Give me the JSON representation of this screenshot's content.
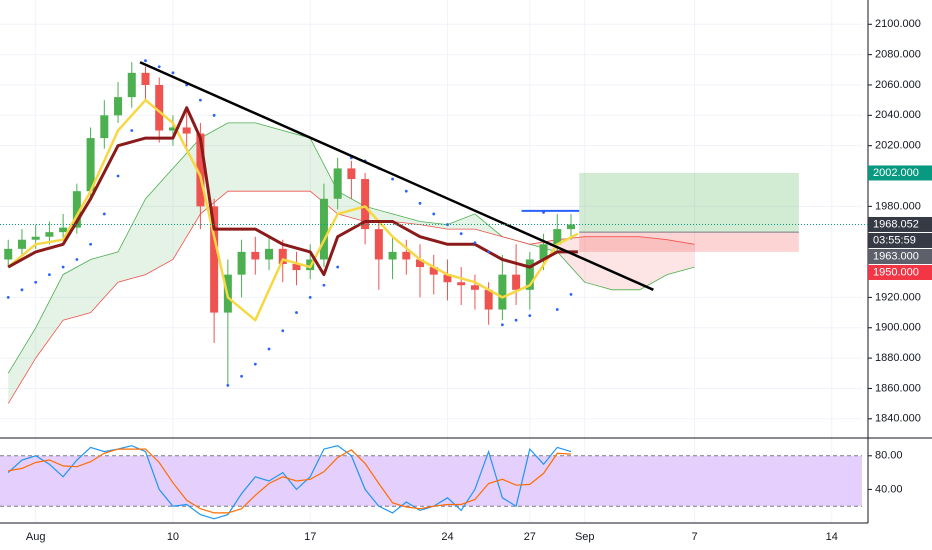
{
  "chart_data": [
    {
      "type": "candlestick",
      "xlim": [
        -1.3,
        30.1
      ],
      "xticks": [
        {
          "value": 0,
          "label": "Aug"
        },
        {
          "value": 5,
          "label": "10"
        },
        {
          "value": 10,
          "label": "17"
        },
        {
          "value": 15,
          "label": "24"
        },
        {
          "value": 18,
          "label": "27"
        },
        {
          "value": 20,
          "label": "Sep"
        },
        {
          "value": 24,
          "label": "7"
        },
        {
          "value": 29,
          "label": "14"
        }
      ],
      "ylim": [
        1828,
        2116
      ],
      "yticks": [
        {
          "value": 2100,
          "label": "2100.000"
        },
        {
          "value": 2080,
          "label": "2080.000"
        },
        {
          "value": 2060,
          "label": "2060.000"
        },
        {
          "value": 2040,
          "label": "2040.000"
        },
        {
          "value": 2020,
          "label": "2020.000"
        },
        {
          "value": 1980,
          "label": "1980.000"
        },
        {
          "value": 1920,
          "label": "1920.000"
        },
        {
          "value": 1900,
          "label": "1900.000"
        },
        {
          "value": 1880,
          "label": "1880.000"
        },
        {
          "value": 1860,
          "label": "1860.000"
        },
        {
          "value": 1840,
          "label": "1840.000"
        }
      ],
      "grid": true,
      "up_color": "#4caf50",
      "down_color": "#ef5350",
      "x": [
        -1,
        -0.5,
        0,
        0.5,
        1,
        1.5,
        2,
        2.5,
        3,
        3.5,
        4,
        4.5,
        5,
        5.5,
        6,
        6.5,
        7,
        7.5,
        8,
        8.5,
        9,
        9.5,
        10,
        10.5,
        11,
        11.5,
        12,
        12.5,
        13,
        13.5,
        14,
        14.5,
        15,
        15.5,
        16,
        16.5,
        17,
        17.5,
        18,
        18.5,
        19,
        19.5
      ],
      "open": [
        1945,
        1952,
        1958,
        1960,
        1963,
        1966,
        1990,
        2025,
        2040,
        2052,
        2068,
        2060,
        2030,
        2032,
        2028,
        1980,
        1910,
        1935,
        1950,
        1945,
        1952,
        1942,
        1938,
        1945,
        1985,
        2005,
        1998,
        1965,
        1945,
        1950,
        1945,
        1940,
        1935,
        1930,
        1928,
        1925,
        1912,
        1935,
        1925,
        1945,
        1955,
        1965
      ],
      "high": [
        1958,
        1965,
        1968,
        1970,
        1975,
        1995,
        2032,
        2050,
        2062,
        2075,
        2072,
        2065,
        2040,
        2045,
        2035,
        1985,
        1945,
        1958,
        1960,
        1960,
        1958,
        1950,
        1955,
        1995,
        2012,
        2010,
        2002,
        1970,
        1960,
        1958,
        1955,
        1948,
        1945,
        1940,
        1935,
        1930,
        1948,
        1955,
        1950,
        1962,
        1975,
        1975
      ],
      "low": [
        1940,
        1948,
        1952,
        1955,
        1958,
        1962,
        1985,
        2018,
        2035,
        2045,
        2050,
        2022,
        2020,
        2018,
        1965,
        1890,
        1862,
        1920,
        1935,
        1938,
        1930,
        1928,
        1932,
        1940,
        1978,
        1985,
        1955,
        1925,
        1932,
        1935,
        1920,
        1922,
        1918,
        1915,
        1912,
        1902,
        1905,
        1915,
        1912,
        1938,
        1950,
        1958
      ],
      "close": [
        1952,
        1958,
        1960,
        1963,
        1966,
        1990,
        2025,
        2040,
        2052,
        2068,
        2060,
        2030,
        2032,
        2028,
        1980,
        1910,
        1935,
        1950,
        1945,
        1952,
        1942,
        1938,
        1945,
        1985,
        2005,
        1998,
        1965,
        1945,
        1950,
        1945,
        1940,
        1935,
        1930,
        1928,
        1925,
        1912,
        1935,
        1925,
        1945,
        1955,
        1965,
        1968.052
      ],
      "cloud": {
        "x": [
          -1,
          0,
          1,
          2,
          3,
          4,
          5,
          6,
          7,
          8,
          9,
          10,
          11,
          12,
          13,
          14,
          15,
          16,
          17,
          18,
          19,
          20,
          21,
          22,
          23,
          24
        ],
        "span_a": [
          1870,
          1900,
          1935,
          1945,
          1950,
          1985,
          2005,
          2025,
          2035,
          2035,
          2030,
          2025,
          1990,
          1980,
          1975,
          1970,
          1968,
          1975,
          1960,
          1955,
          1950,
          1930,
          1925,
          1925,
          1935,
          1940
        ],
        "span_b": [
          1850,
          1880,
          1905,
          1910,
          1930,
          1935,
          1945,
          1975,
          1990,
          1990,
          1990,
          1990,
          1975,
          1970,
          1970,
          1968,
          1965,
          1965,
          1960,
          1955,
          1958,
          1960,
          1960,
          1960,
          1958,
          1955
        ],
        "color_a": "#4caf50",
        "color_b": "#ef5350"
      },
      "overlays": [
        {
          "color": "#f7d842",
          "width": 2.5,
          "x": [
            -1,
            0,
            1,
            2,
            3,
            4,
            5,
            6,
            7,
            8,
            9,
            10,
            11,
            12,
            13,
            14,
            15,
            16,
            17,
            18,
            19,
            19.75
          ],
          "values": [
            1940,
            1955,
            1958,
            1990,
            2030,
            2050,
            2035,
            2000,
            1920,
            1905,
            1945,
            1940,
            1975,
            1980,
            1960,
            1945,
            1935,
            1930,
            1920,
            1928,
            1955,
            1962
          ]
        },
        {
          "color": "#8b1a1a",
          "width": 3,
          "x": [
            -1,
            0,
            1,
            2,
            3,
            4,
            5,
            5.5,
            6,
            6.5,
            7,
            8,
            9,
            10,
            10.5,
            11,
            12,
            13,
            14,
            15,
            16,
            17,
            18,
            19,
            19.75
          ],
          "values": [
            1940,
            1950,
            1955,
            1985,
            2020,
            2025,
            2025,
            2045,
            2025,
            1965,
            1965,
            1965,
            1955,
            1950,
            1935,
            1960,
            1970,
            1970,
            1960,
            1955,
            1955,
            1945,
            1940,
            1950,
            1950
          ]
        }
      ],
      "sar": {
        "color": "#2962ff",
        "x": [
          -1,
          -0.5,
          0,
          0.5,
          1,
          1.5,
          2,
          2.5,
          3,
          3.5,
          4,
          4.5,
          5,
          5.5,
          6,
          6.5,
          7,
          7.5,
          8,
          8.5,
          9,
          9.5,
          10,
          10.5,
          11,
          11.5,
          12,
          12.5,
          13,
          13.5,
          14,
          14.5,
          15,
          15.5,
          16,
          16.5,
          17,
          17.5,
          18,
          18.5,
          19,
          19.5
        ],
        "values": [
          1920,
          1925,
          1930,
          1935,
          1940,
          1945,
          1955,
          1975,
          2000,
          2030,
          2076,
          2072,
          2068,
          2060,
          2050,
          2040,
          1862,
          1868,
          1876,
          1886,
          1898,
          1910,
          1920,
          1928,
          1940,
          2012,
          2010,
          2005,
          1998,
          1990,
          1982,
          1975,
          1968,
          1962,
          1956,
          1950,
          1902,
          1905,
          1908,
          1976,
          1912,
          1922
        ]
      },
      "trendline": {
        "color": "#000000",
        "x": [
          3.8,
          22.5
        ],
        "values": [
          2075,
          1925
        ]
      },
      "levels": [
        {
          "color": "#2962ff",
          "x": [
            17.7,
            19.8
          ],
          "value": 1977
        }
      ],
      "position": {
        "x": [
          19.8,
          27.8
        ],
        "entry": 1963,
        "target": 2002,
        "stop": 1950
      },
      "price_labels": [
        {
          "value": 2002,
          "label": "2002.000",
          "color": "#089981"
        },
        {
          "value": 1968.052,
          "label": "1968.052",
          "color": "#363a45",
          "countdown": "03:55:59",
          "dotted": true
        },
        {
          "value": 1963,
          "label": "1963.000",
          "color": "#5d606b"
        },
        {
          "value": 1950,
          "label": "1950.000",
          "color": "#f23645"
        }
      ]
    },
    {
      "type": "stochastic",
      "xlim": [
        -1.3,
        30.1
      ],
      "ylim": [
        0,
        100
      ],
      "yticks": [
        {
          "value": 80,
          "label": "80.00"
        },
        {
          "value": 40,
          "label": "40.00"
        }
      ],
      "band": [
        20,
        80
      ],
      "band_color": "#e4cffd",
      "x": [
        -1,
        -0.5,
        0,
        0.5,
        1,
        1.5,
        2,
        2.5,
        3,
        3.5,
        4,
        4.5,
        5,
        5.5,
        6,
        6.5,
        7,
        7.5,
        8,
        8.5,
        9,
        9.5,
        10,
        10.5,
        11,
        11.5,
        12,
        12.5,
        13,
        13.5,
        14,
        14.5,
        15,
        15.5,
        16,
        16.5,
        17,
        17.5,
        18,
        18.5,
        19,
        19.5
      ],
      "series": [
        {
          "color": "#2196f3",
          "values": [
            60,
            75,
            80,
            70,
            55,
            75,
            90,
            85,
            88,
            92,
            85,
            40,
            20,
            22,
            10,
            5,
            10,
            35,
            55,
            50,
            60,
            40,
            55,
            88,
            92,
            80,
            40,
            20,
            12,
            25,
            15,
            20,
            30,
            15,
            40,
            85,
            30,
            20,
            88,
            70,
            90,
            85
          ]
        },
        {
          "color": "#ff6d00",
          "values": [
            62,
            65,
            72,
            75,
            68,
            67,
            73,
            83,
            88,
            88,
            88,
            72,
            48,
            27,
            17,
            12,
            12,
            17,
            33,
            47,
            55,
            50,
            52,
            61,
            78,
            87,
            71,
            47,
            24,
            19,
            17,
            20,
            22,
            22,
            28,
            47,
            52,
            45,
            46,
            59,
            83,
            82
          ]
        }
      ]
    }
  ]
}
